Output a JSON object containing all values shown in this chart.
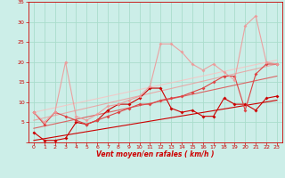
{
  "background_color": "#cceee8",
  "grid_color": "#aaddcc",
  "xlabel": "Vent moyen/en rafales ( km/h )",
  "xlabel_color": "#cc0000",
  "tick_color": "#cc0000",
  "xlim": [
    -0.5,
    23.5
  ],
  "ylim": [
    0,
    35
  ],
  "yticks": [
    0,
    5,
    10,
    15,
    20,
    25,
    30,
    35
  ],
  "xticks": [
    0,
    1,
    2,
    3,
    4,
    5,
    6,
    7,
    8,
    9,
    10,
    11,
    12,
    13,
    14,
    15,
    16,
    17,
    18,
    19,
    20,
    21,
    22,
    23
  ],
  "series": [
    {
      "x": [
        0,
        1,
        2,
        3,
        4,
        5,
        6,
        7,
        8,
        9,
        10,
        11,
        12,
        13,
        14,
        15,
        16,
        17,
        18,
        19,
        20,
        21,
        22,
        23
      ],
      "y": [
        2.5,
        0.5,
        0.5,
        1.0,
        5.0,
        4.5,
        5.5,
        8.0,
        9.5,
        9.5,
        11.0,
        13.5,
        13.5,
        8.5,
        7.5,
        8.0,
        6.5,
        6.5,
        11.0,
        9.5,
        9.5,
        8.0,
        11.0,
        11.5
      ],
      "color": "#cc0000",
      "alpha": 1.0,
      "lw": 0.8,
      "marker": "D",
      "ms": 2.0
    },
    {
      "x": [
        0,
        1,
        2,
        3,
        4,
        5,
        6,
        7,
        8,
        9,
        10,
        11,
        12,
        13,
        14,
        15,
        16,
        17,
        18,
        19,
        20,
        21,
        22,
        23
      ],
      "y": [
        7.5,
        4.5,
        7.5,
        6.5,
        5.5,
        4.5,
        5.5,
        6.5,
        7.5,
        8.5,
        9.5,
        9.5,
        10.5,
        11.0,
        11.5,
        12.5,
        13.5,
        15.0,
        16.5,
        16.5,
        8.0,
        17.0,
        19.5,
        19.5
      ],
      "color": "#dd4444",
      "alpha": 1.0,
      "lw": 0.8,
      "marker": "D",
      "ms": 2.0
    },
    {
      "x": [
        0,
        1,
        2,
        3,
        4,
        5,
        6,
        7,
        8,
        9,
        10,
        11,
        12,
        13,
        14,
        15,
        16,
        17,
        18,
        19,
        20,
        21,
        22,
        23
      ],
      "y": [
        7.5,
        5.0,
        7.5,
        20.0,
        6.5,
        5.5,
        7.0,
        9.0,
        9.5,
        10.5,
        11.5,
        14.0,
        24.5,
        24.5,
        22.5,
        19.5,
        18.0,
        19.5,
        17.5,
        15.5,
        29.0,
        31.5,
        20.0,
        19.5
      ],
      "color": "#ee9999",
      "alpha": 0.9,
      "lw": 0.8,
      "marker": "D",
      "ms": 2.0
    },
    {
      "x": [
        0,
        23
      ],
      "y": [
        0.5,
        10.5
      ],
      "color": "#cc0000",
      "alpha": 1.0,
      "lw": 0.8,
      "marker": null,
      "ms": 0
    },
    {
      "x": [
        0,
        23
      ],
      "y": [
        3.5,
        16.5
      ],
      "color": "#dd5555",
      "alpha": 0.9,
      "lw": 0.8,
      "marker": null,
      "ms": 0
    },
    {
      "x": [
        0,
        23
      ],
      "y": [
        5.5,
        19.5
      ],
      "color": "#ee9999",
      "alpha": 0.8,
      "lw": 0.8,
      "marker": null,
      "ms": 0
    },
    {
      "x": [
        0,
        23
      ],
      "y": [
        7.5,
        20.5
      ],
      "color": "#ffbbbb",
      "alpha": 0.7,
      "lw": 0.8,
      "marker": null,
      "ms": 0
    }
  ]
}
